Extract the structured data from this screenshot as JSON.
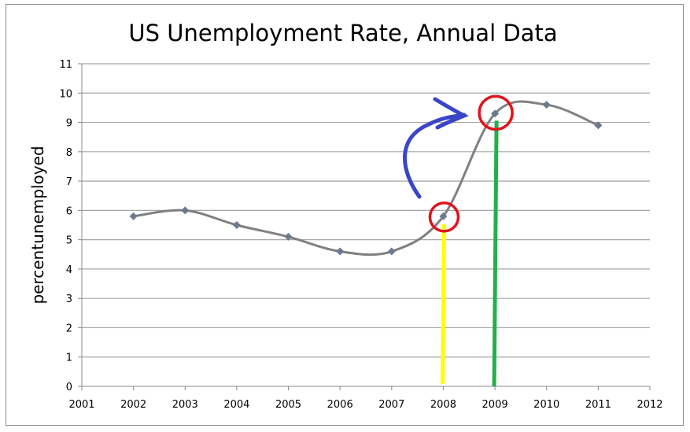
{
  "chart_data": {
    "type": "line",
    "title": "US Unemployment Rate, Annual Data",
    "xlabel": "",
    "ylabel": "percentunemployed",
    "x": [
      2002,
      2003,
      2004,
      2005,
      2006,
      2007,
      2008,
      2009,
      2010,
      2011
    ],
    "values": [
      5.8,
      6.0,
      5.5,
      5.1,
      4.6,
      4.6,
      5.8,
      9.3,
      9.6,
      8.9
    ],
    "xlim": [
      2001,
      2012
    ],
    "ylim": [
      0,
      11
    ],
    "xticks": [
      "2001",
      "2002",
      "2003",
      "2004",
      "2005",
      "2006",
      "2007",
      "2008",
      "2009",
      "2010",
      "2011",
      "2012"
    ],
    "yticks": [
      "0",
      "1",
      "2",
      "3",
      "4",
      "5",
      "6",
      "7",
      "8",
      "9",
      "10",
      "11"
    ],
    "grid": "horizontal",
    "smoothed": true,
    "legend": "none",
    "colors": {
      "line": "#808080",
      "marker": "#6b7a8f",
      "grid": "#a6a6a6"
    },
    "annotations": [
      {
        "type": "circle",
        "x": 2008,
        "color": "#e0141e"
      },
      {
        "type": "circle",
        "x": 2009,
        "color": "#e0141e"
      },
      {
        "type": "vertical-line",
        "x": 2008,
        "color": "#ffff00"
      },
      {
        "type": "vertical-line",
        "x": 2009,
        "color": "#22b04a"
      },
      {
        "type": "arrow",
        "from": 2008,
        "to": 2009,
        "color": "#3a45c8"
      }
    ]
  }
}
